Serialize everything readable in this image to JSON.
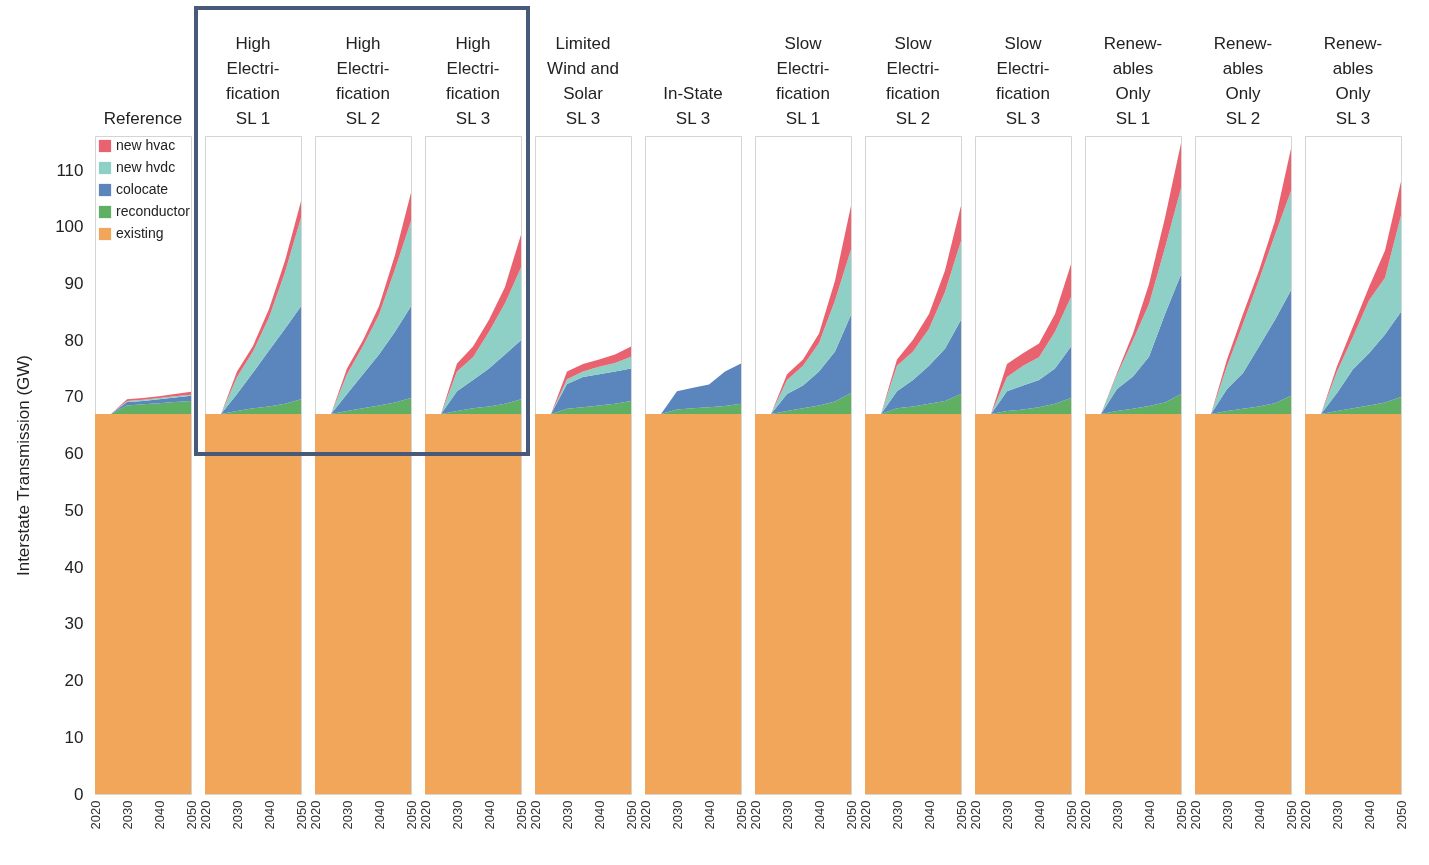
{
  "chart_data": [
    {
      "type": "area",
      "title": "Reference",
      "stacked": true,
      "legend": "top left",
      "ylabel": "Interstate Transmission (GW)",
      "x": [
        2020,
        2025,
        2030,
        2035,
        2040,
        2045,
        2050
      ],
      "xlim": [
        2020,
        2050
      ],
      "xticks": [
        2020,
        2030,
        2040,
        2050
      ],
      "ylim": [
        0,
        116
      ],
      "yticks": [
        0,
        10,
        20,
        30,
        40,
        50,
        60,
        70,
        80,
        90,
        100,
        110
      ],
      "series": [
        {
          "name": "existing",
          "color": "#f2a65a",
          "values": [
            67,
            67,
            67,
            67,
            67,
            67,
            67
          ]
        },
        {
          "name": "reconductor",
          "color": "#5fb062",
          "values": [
            0,
            0,
            1.5,
            1.7,
            1.9,
            2.1,
            2.3
          ]
        },
        {
          "name": "colocate",
          "color": "#5b86bd",
          "values": [
            0,
            0,
            0.6,
            0.6,
            0.7,
            0.8,
            0.9
          ]
        },
        {
          "name": "new hvdc",
          "color": "#8ed0c6",
          "values": [
            0,
            0,
            0.2,
            0.2,
            0.2,
            0.2,
            0.2
          ]
        },
        {
          "name": "new hvac",
          "color": "#e8636f",
          "values": [
            0,
            0,
            0.3,
            0.3,
            0.3,
            0.4,
            0.5
          ]
        }
      ]
    },
    {
      "type": "area",
      "title": "High\nElectri-\nfication\nSL 1",
      "stacked": true,
      "tick_labels": "x",
      "x": [
        2020,
        2025,
        2030,
        2035,
        2040,
        2045,
        2050
      ],
      "xlim": [
        2020,
        2050
      ],
      "xticks": [
        2020,
        2030,
        2040,
        2050
      ],
      "ylim": [
        0,
        116
      ],
      "yticks": [
        0,
        10,
        20,
        30,
        40,
        50,
        60,
        70,
        80,
        90,
        100,
        110
      ],
      "series": [
        {
          "color": "#f2a65a",
          "values": [
            67,
            67,
            67,
            67,
            67,
            67,
            67
          ]
        },
        {
          "color": "#5fb062",
          "values": [
            0,
            0,
            0.5,
            1,
            1.3,
            1.8,
            2.6
          ]
        },
        {
          "color": "#5b86bd",
          "values": [
            0,
            0,
            3,
            6.3,
            9.9,
            13.2,
            16.4
          ]
        },
        {
          "color": "#8ed0c6",
          "values": [
            0,
            0,
            3,
            3.7,
            5.8,
            10,
            15.6
          ]
        },
        {
          "color": "#e8636f",
          "values": [
            0,
            0,
            1,
            1,
            1.5,
            2,
            2.9
          ]
        }
      ]
    },
    {
      "type": "area",
      "title": "High\nElectri-\nfication\nSL 2",
      "stacked": true,
      "tick_labels": "x",
      "x": [
        2020,
        2025,
        2030,
        2035,
        2040,
        2045,
        2050
      ],
      "xlim": [
        2020,
        2050
      ],
      "xticks": [
        2020,
        2030,
        2040,
        2050
      ],
      "ylim": [
        0,
        116
      ],
      "yticks": [
        0,
        10,
        20,
        30,
        40,
        50,
        60,
        70,
        80,
        90,
        100,
        110
      ],
      "series": [
        {
          "color": "#f2a65a",
          "values": [
            67,
            67,
            67,
            67,
            67,
            67,
            67
          ]
        },
        {
          "color": "#5fb062",
          "values": [
            0,
            0,
            0.5,
            1,
            1.5,
            2,
            2.8
          ]
        },
        {
          "color": "#5b86bd",
          "values": [
            0,
            0,
            3,
            6,
            9,
            12.5,
            16.2
          ]
        },
        {
          "color": "#8ed0c6",
          "values": [
            0,
            0,
            3.5,
            5,
            7,
            11,
            15
          ]
        },
        {
          "color": "#e8636f",
          "values": [
            0,
            0,
            1,
            1,
            1.5,
            2.5,
            5
          ]
        }
      ]
    },
    {
      "type": "area",
      "title": "High\nElectri-\nfication\nSL 3",
      "stacked": true,
      "tick_labels": "x",
      "x": [
        2020,
        2025,
        2030,
        2035,
        2040,
        2045,
        2050
      ],
      "xlim": [
        2020,
        2050
      ],
      "xticks": [
        2020,
        2030,
        2040,
        2050
      ],
      "ylim": [
        0,
        116
      ],
      "yticks": [
        0,
        10,
        20,
        30,
        40,
        50,
        60,
        70,
        80,
        90,
        100,
        110
      ],
      "series": [
        {
          "color": "#f2a65a",
          "values": [
            67,
            67,
            67,
            67,
            67,
            67,
            67
          ]
        },
        {
          "color": "#5fb062",
          "values": [
            0,
            0,
            0.5,
            1,
            1.3,
            1.8,
            2.6
          ]
        },
        {
          "color": "#5b86bd",
          "values": [
            0,
            0,
            3.5,
            5,
            6.7,
            8.7,
            10.4
          ]
        },
        {
          "color": "#8ed0c6",
          "values": [
            0,
            0,
            3.5,
            4,
            6.5,
            9,
            12.8
          ]
        },
        {
          "color": "#e8636f",
          "values": [
            0,
            0,
            1.4,
            1.9,
            2.1,
            2.9,
            5.8
          ]
        }
      ]
    },
    {
      "type": "area",
      "title": "Limited\nWind and\nSolar\nSL 3",
      "stacked": true,
      "tick_labels": "x",
      "x": [
        2020,
        2025,
        2030,
        2035,
        2040,
        2045,
        2050
      ],
      "xlim": [
        2020,
        2050
      ],
      "xticks": [
        2020,
        2030,
        2040,
        2050
      ],
      "ylim": [
        0,
        116
      ],
      "yticks": [
        0,
        10,
        20,
        30,
        40,
        50,
        60,
        70,
        80,
        90,
        100,
        110
      ],
      "series": [
        {
          "color": "#f2a65a",
          "values": [
            67,
            67,
            67,
            67,
            67,
            67,
            67
          ]
        },
        {
          "color": "#5fb062",
          "values": [
            0,
            0,
            0.9,
            1.2,
            1.5,
            1.8,
            2.3
          ]
        },
        {
          "color": "#5b86bd",
          "values": [
            0,
            0,
            4.4,
            5.3,
            5.5,
            5.7,
            5.7
          ]
        },
        {
          "color": "#8ed0c6",
          "values": [
            0,
            0,
            0.8,
            1,
            1.3,
            1.5,
            2.1
          ]
        },
        {
          "color": "#e8636f",
          "values": [
            0,
            0,
            1.4,
            1.3,
            1.3,
            1.5,
            1.8
          ]
        }
      ]
    },
    {
      "type": "area",
      "title": "In-State\nSL 3",
      "stacked": true,
      "tick_labels": "x",
      "x": [
        2020,
        2025,
        2030,
        2035,
        2040,
        2045,
        2050
      ],
      "xlim": [
        2020,
        2050
      ],
      "xticks": [
        2020,
        2030,
        2040,
        2050
      ],
      "ylim": [
        0,
        116
      ],
      "yticks": [
        0,
        10,
        20,
        30,
        40,
        50,
        60,
        70,
        80,
        90,
        100,
        110
      ],
      "series": [
        {
          "color": "#f2a65a",
          "values": [
            67,
            67,
            67,
            67,
            67,
            67,
            67
          ]
        },
        {
          "color": "#5fb062",
          "values": [
            0,
            0,
            0.8,
            1,
            1.2,
            1.4,
            1.8
          ]
        },
        {
          "color": "#5b86bd",
          "values": [
            0,
            0,
            3.2,
            3.6,
            4,
            6.1,
            7.1
          ]
        }
      ]
    },
    {
      "type": "area",
      "title": "Slow\nElectri-\nfication\nSL 1",
      "stacked": true,
      "tick_labels": "x",
      "x": [
        2020,
        2025,
        2030,
        2035,
        2040,
        2045,
        2050
      ],
      "xlim": [
        2020,
        2050
      ],
      "xticks": [
        2020,
        2030,
        2040,
        2050
      ],
      "ylim": [
        0,
        116
      ],
      "yticks": [
        0,
        10,
        20,
        30,
        40,
        50,
        60,
        70,
        80,
        90,
        100,
        110
      ],
      "series": [
        {
          "color": "#f2a65a",
          "values": [
            67,
            67,
            67,
            67,
            67,
            67,
            67
          ]
        },
        {
          "color": "#5fb062",
          "values": [
            0,
            0,
            0.5,
            1,
            1.5,
            2.2,
            3.7
          ]
        },
        {
          "color": "#5b86bd",
          "values": [
            0,
            0,
            3,
            4,
            6,
            8.8,
            13.8
          ]
        },
        {
          "color": "#8ed0c6",
          "values": [
            0,
            0,
            2.5,
            3.5,
            5,
            9,
            11.5
          ]
        },
        {
          "color": "#e8636f",
          "values": [
            0,
            0,
            1,
            1.1,
            1.7,
            3.5,
            7.7
          ]
        }
      ]
    },
    {
      "type": "area",
      "title": "Slow\nElectri-\nfication\nSL 2",
      "stacked": true,
      "tick_labels": "x",
      "x": [
        2020,
        2025,
        2030,
        2035,
        2040,
        2045,
        2050
      ],
      "xlim": [
        2020,
        2050
      ],
      "xticks": [
        2020,
        2030,
        2040,
        2050
      ],
      "ylim": [
        0,
        116
      ],
      "yticks": [
        0,
        10,
        20,
        30,
        40,
        50,
        60,
        70,
        80,
        90,
        100,
        110
      ],
      "series": [
        {
          "color": "#f2a65a",
          "values": [
            67,
            67,
            67,
            67,
            67,
            67,
            67
          ]
        },
        {
          "color": "#5fb062",
          "values": [
            0,
            0,
            1,
            1.3,
            1.8,
            2.3,
            3.5
          ]
        },
        {
          "color": "#5b86bd",
          "values": [
            0,
            0,
            3,
            4.7,
            6.7,
            9.2,
            13.1
          ]
        },
        {
          "color": "#8ed0c6",
          "values": [
            0,
            0,
            4.5,
            5,
            6.5,
            10,
            13.9
          ]
        },
        {
          "color": "#e8636f",
          "values": [
            0,
            0,
            1.1,
            2.1,
            2.6,
            3.8,
            6.2
          ]
        }
      ]
    },
    {
      "type": "area",
      "title": "Slow\nElectri-\nfication\nSL 3",
      "stacked": true,
      "tick_labels": "x",
      "x": [
        2020,
        2025,
        2030,
        2035,
        2040,
        2045,
        2050
      ],
      "xlim": [
        2020,
        2050
      ],
      "xticks": [
        2020,
        2030,
        2040,
        2050
      ],
      "ylim": [
        0,
        116
      ],
      "yticks": [
        0,
        10,
        20,
        30,
        40,
        50,
        60,
        70,
        80,
        90,
        100,
        110
      ],
      "series": [
        {
          "color": "#f2a65a",
          "values": [
            67,
            67,
            67,
            67,
            67,
            67,
            67
          ]
        },
        {
          "color": "#5fb062",
          "values": [
            0,
            0,
            0.5,
            0.8,
            1.2,
            1.8,
            2.8
          ]
        },
        {
          "color": "#5b86bd",
          "values": [
            0,
            0,
            3.5,
            4.2,
            4.8,
            6.2,
            9.1
          ]
        },
        {
          "color": "#8ed0c6",
          "values": [
            0,
            0,
            2.5,
            3.5,
            4,
            6.5,
            8.7
          ]
        },
        {
          "color": "#e8636f",
          "values": [
            0,
            0,
            2.3,
            2.2,
            2.4,
            3.1,
            5.8
          ]
        }
      ]
    },
    {
      "type": "area",
      "title": "Renew-\nables\nOnly\nSL 1",
      "stacked": true,
      "tick_labels": "x",
      "x": [
        2020,
        2025,
        2030,
        2035,
        2040,
        2045,
        2050
      ],
      "xlim": [
        2020,
        2050
      ],
      "xticks": [
        2020,
        2030,
        2040,
        2050
      ],
      "ylim": [
        0,
        116
      ],
      "yticks": [
        0,
        10,
        20,
        30,
        40,
        50,
        60,
        70,
        80,
        90,
        100,
        110
      ],
      "series": [
        {
          "color": "#f2a65a",
          "values": [
            67,
            67,
            67,
            67,
            67,
            67,
            67
          ]
        },
        {
          "color": "#5fb062",
          "values": [
            0,
            0,
            0.5,
            0.9,
            1.4,
            2,
            3.5
          ]
        },
        {
          "color": "#5b86bd",
          "values": [
            0,
            0,
            3.9,
            5.7,
            8.7,
            15.6,
            21.1
          ]
        },
        {
          "color": "#8ed0c6",
          "values": [
            0,
            0,
            2.5,
            6.4,
            9.3,
            11.7,
            15.2
          ]
        },
        {
          "color": "#e8636f",
          "values": [
            0,
            0,
            0.3,
            1.2,
            3.5,
            5.3,
            7.9
          ]
        }
      ]
    },
    {
      "type": "area",
      "title": "Renew-\nables\nOnly\nSL 2",
      "stacked": true,
      "tick_labels": "x",
      "x": [
        2020,
        2025,
        2030,
        2035,
        2040,
        2045,
        2050
      ],
      "xlim": [
        2020,
        2050
      ],
      "xticks": [
        2020,
        2030,
        2040,
        2050
      ],
      "ylim": [
        0,
        116
      ],
      "yticks": [
        0,
        10,
        20,
        30,
        40,
        50,
        60,
        70,
        80,
        90,
        100,
        110
      ],
      "series": [
        {
          "color": "#f2a65a",
          "values": [
            67,
            67,
            67,
            67,
            67,
            67,
            67
          ]
        },
        {
          "color": "#5fb062",
          "values": [
            0,
            0,
            0.5,
            0.9,
            1.3,
            1.9,
            3.2
          ]
        },
        {
          "color": "#5b86bd",
          "values": [
            0,
            0,
            3.9,
            6.3,
            10.6,
            14.7,
            18.6
          ]
        },
        {
          "color": "#8ed0c6",
          "values": [
            0,
            0,
            4,
            8.7,
            11.7,
            15,
            17.5
          ]
        },
        {
          "color": "#e8636f",
          "values": [
            0,
            0,
            1.2,
            1.7,
            1.7,
            2.4,
            7.5
          ]
        }
      ]
    },
    {
      "type": "area",
      "title": "Renew-\nables\nOnly\nSL 3",
      "stacked": true,
      "tick_labels": "x",
      "x": [
        2020,
        2025,
        2030,
        2035,
        2040,
        2045,
        2050
      ],
      "xlim": [
        2020,
        2050
      ],
      "xticks": [
        2020,
        2030,
        2040,
        2050
      ],
      "ylim": [
        0,
        116
      ],
      "yticks": [
        0,
        10,
        20,
        30,
        40,
        50,
        60,
        70,
        80,
        90,
        100,
        110
      ],
      "series": [
        {
          "color": "#f2a65a",
          "values": [
            67,
            67,
            67,
            67,
            67,
            67,
            67
          ]
        },
        {
          "color": "#5fb062",
          "values": [
            0,
            0,
            0.5,
            1,
            1.5,
            2,
            3
          ]
        },
        {
          "color": "#5b86bd",
          "values": [
            0,
            0,
            3.2,
            6.9,
            9.2,
            12,
            15
          ]
        },
        {
          "color": "#8ed0c6",
          "values": [
            0,
            0,
            3.8,
            5.7,
            9.3,
            10,
            17
          ]
        },
        {
          "color": "#e8636f",
          "values": [
            0,
            0,
            0.9,
            1.8,
            2.4,
            4.8,
            6
          ]
        }
      ]
    }
  ]
}
